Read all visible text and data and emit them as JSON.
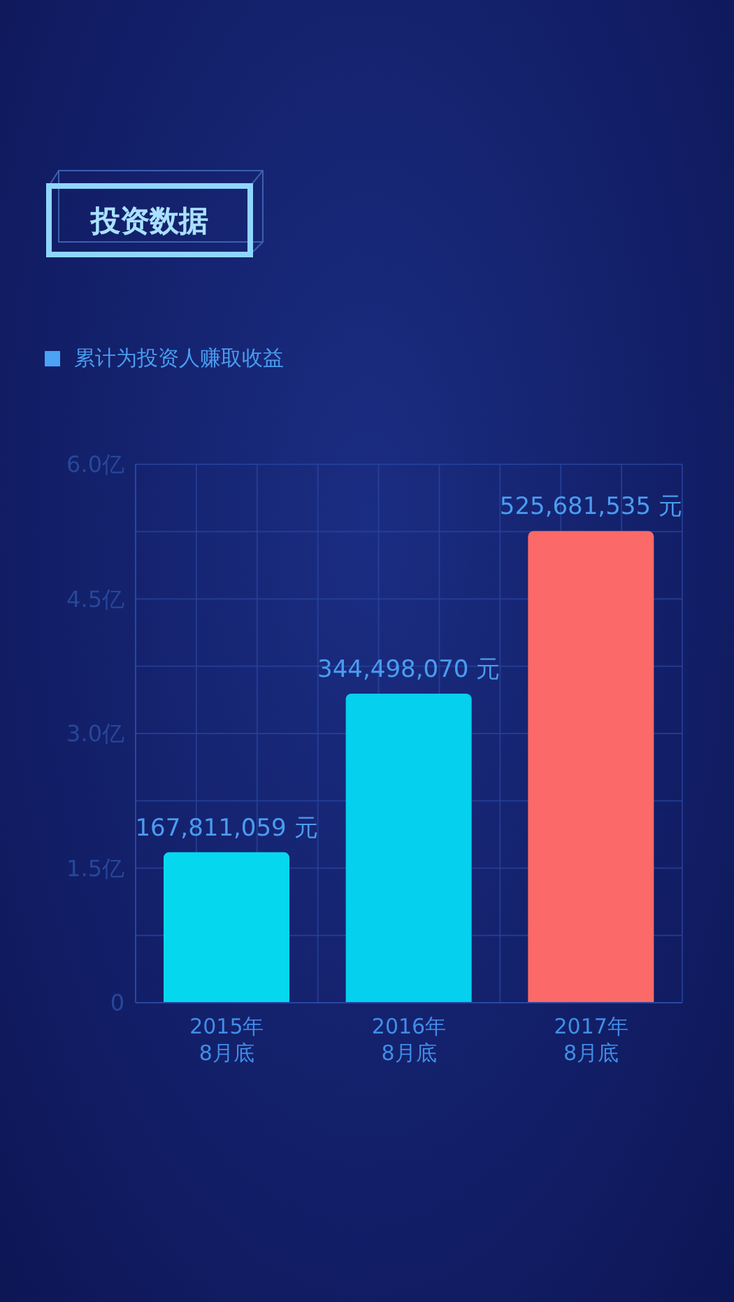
{
  "chart_data": {
    "type": "bar",
    "title": "投资数据",
    "categories": [
      "2015年\n8月底",
      "2016年\n8月底",
      "2017年\n8月底"
    ],
    "series": [
      {
        "name": "累计为投资人赚取收益",
        "values": [
          1.67811059,
          3.4449807,
          5.25681535
        ]
      }
    ],
    "colors": [
      "#05d8ee",
      "#05d0ee",
      "#fb6a68"
    ],
    "value_labels": [
      "167,811,059 元",
      "344,498,070 元",
      "525,681,535 元"
    ],
    "ylim": [
      0,
      6
    ],
    "yticks": [
      0,
      {
        "value": 0.75,
        "label": null
      },
      {
        "value": 1.5,
        "label": "1.5亿"
      },
      {
        "value": 2.25,
        "label": null
      },
      {
        "value": 3,
        "label": "3.0亿"
      },
      {
        "value": 3.75,
        "label": null
      },
      {
        "value": 4.5,
        "label": "4.5亿"
      },
      {
        "value": 5.25,
        "label": null
      },
      {
        "value": 6,
        "label": "6.0亿"
      }
    ],
    "grid": true,
    "legend": "top left"
  }
}
